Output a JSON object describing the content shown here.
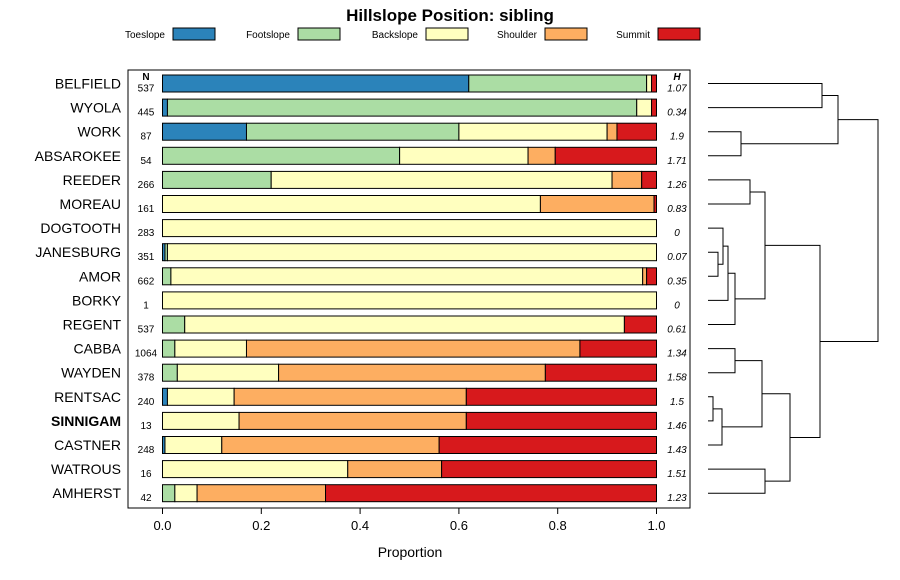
{
  "chart_data": {
    "type": "stacked-bar-horizontal",
    "title": "Hillslope Position: sibling",
    "xlabel": "Proportion",
    "xlim": [
      0,
      1
    ],
    "x_ticks": [
      "0.0",
      "0.2",
      "0.4",
      "0.6",
      "0.8",
      "1.0"
    ],
    "n_header": "N",
    "h_header": "H",
    "highlight": "SINNIGAM",
    "legend": [
      {
        "name": "Toeslope",
        "color": "#2b83ba"
      },
      {
        "name": "Footslope",
        "color": "#abdda4"
      },
      {
        "name": "Backslope",
        "color": "#ffffbf"
      },
      {
        "name": "Shoulder",
        "color": "#fdae61"
      },
      {
        "name": "Summit",
        "color": "#d7191c"
      }
    ],
    "rows": [
      {
        "name": "BELFIELD",
        "n": "537",
        "h": "1.07",
        "values": [
          0.62,
          0.36,
          0.01,
          0.0,
          0.01
        ]
      },
      {
        "name": "WYOLA",
        "n": "445",
        "h": "0.34",
        "values": [
          0.01,
          0.95,
          0.03,
          0.0,
          0.01
        ]
      },
      {
        "name": "WORK",
        "n": "87",
        "h": "1.9",
        "values": [
          0.17,
          0.43,
          0.3,
          0.02,
          0.08
        ]
      },
      {
        "name": "ABSAROKEE",
        "n": "54",
        "h": "1.71",
        "values": [
          0.0,
          0.48,
          0.26,
          0.055,
          0.205
        ]
      },
      {
        "name": "REEDER",
        "n": "266",
        "h": "1.26",
        "values": [
          0.0,
          0.22,
          0.69,
          0.06,
          0.03
        ]
      },
      {
        "name": "MOREAU",
        "n": "161",
        "h": "0.83",
        "values": [
          0.0,
          0.0,
          0.765,
          0.23,
          0.005
        ]
      },
      {
        "name": "DOGTOOTH",
        "n": "283",
        "h": "0",
        "values": [
          0.0,
          0.0,
          1.0,
          0.0,
          0.0
        ]
      },
      {
        "name": "JANESBURG",
        "n": "351",
        "h": "0.07",
        "values": [
          0.005,
          0.005,
          0.99,
          0.0,
          0.0
        ]
      },
      {
        "name": "AMOR",
        "n": "662",
        "h": "0.35",
        "values": [
          0.0,
          0.017,
          0.955,
          0.008,
          0.02
        ]
      },
      {
        "name": "BORKY",
        "n": "1",
        "h": "0",
        "values": [
          0.0,
          0.0,
          1.0,
          0.0,
          0.0
        ]
      },
      {
        "name": "REGENT",
        "n": "537",
        "h": "0.61",
        "values": [
          0.0,
          0.045,
          0.89,
          0.0,
          0.065
        ]
      },
      {
        "name": "CABBA",
        "n": "1064",
        "h": "1.34",
        "values": [
          0.0,
          0.025,
          0.145,
          0.675,
          0.155
        ]
      },
      {
        "name": "WAYDEN",
        "n": "378",
        "h": "1.58",
        "values": [
          0.0,
          0.03,
          0.205,
          0.54,
          0.225
        ]
      },
      {
        "name": "RENTSAC",
        "n": "240",
        "h": "1.5",
        "values": [
          0.01,
          0.0,
          0.135,
          0.47,
          0.385
        ]
      },
      {
        "name": "SINNIGAM",
        "n": "13",
        "h": "1.46",
        "values": [
          0.0,
          0.0,
          0.155,
          0.46,
          0.385
        ]
      },
      {
        "name": "CASTNER",
        "n": "248",
        "h": "1.43",
        "values": [
          0.005,
          0.0,
          0.115,
          0.44,
          0.44
        ]
      },
      {
        "name": "WATROUS",
        "n": "16",
        "h": "1.51",
        "values": [
          0.0,
          0.0,
          0.375,
          0.19,
          0.435
        ]
      },
      {
        "name": "AMHERST",
        "n": "42",
        "h": "1.23",
        "values": [
          0.0,
          0.025,
          0.045,
          0.26,
          0.67
        ]
      }
    ]
  }
}
